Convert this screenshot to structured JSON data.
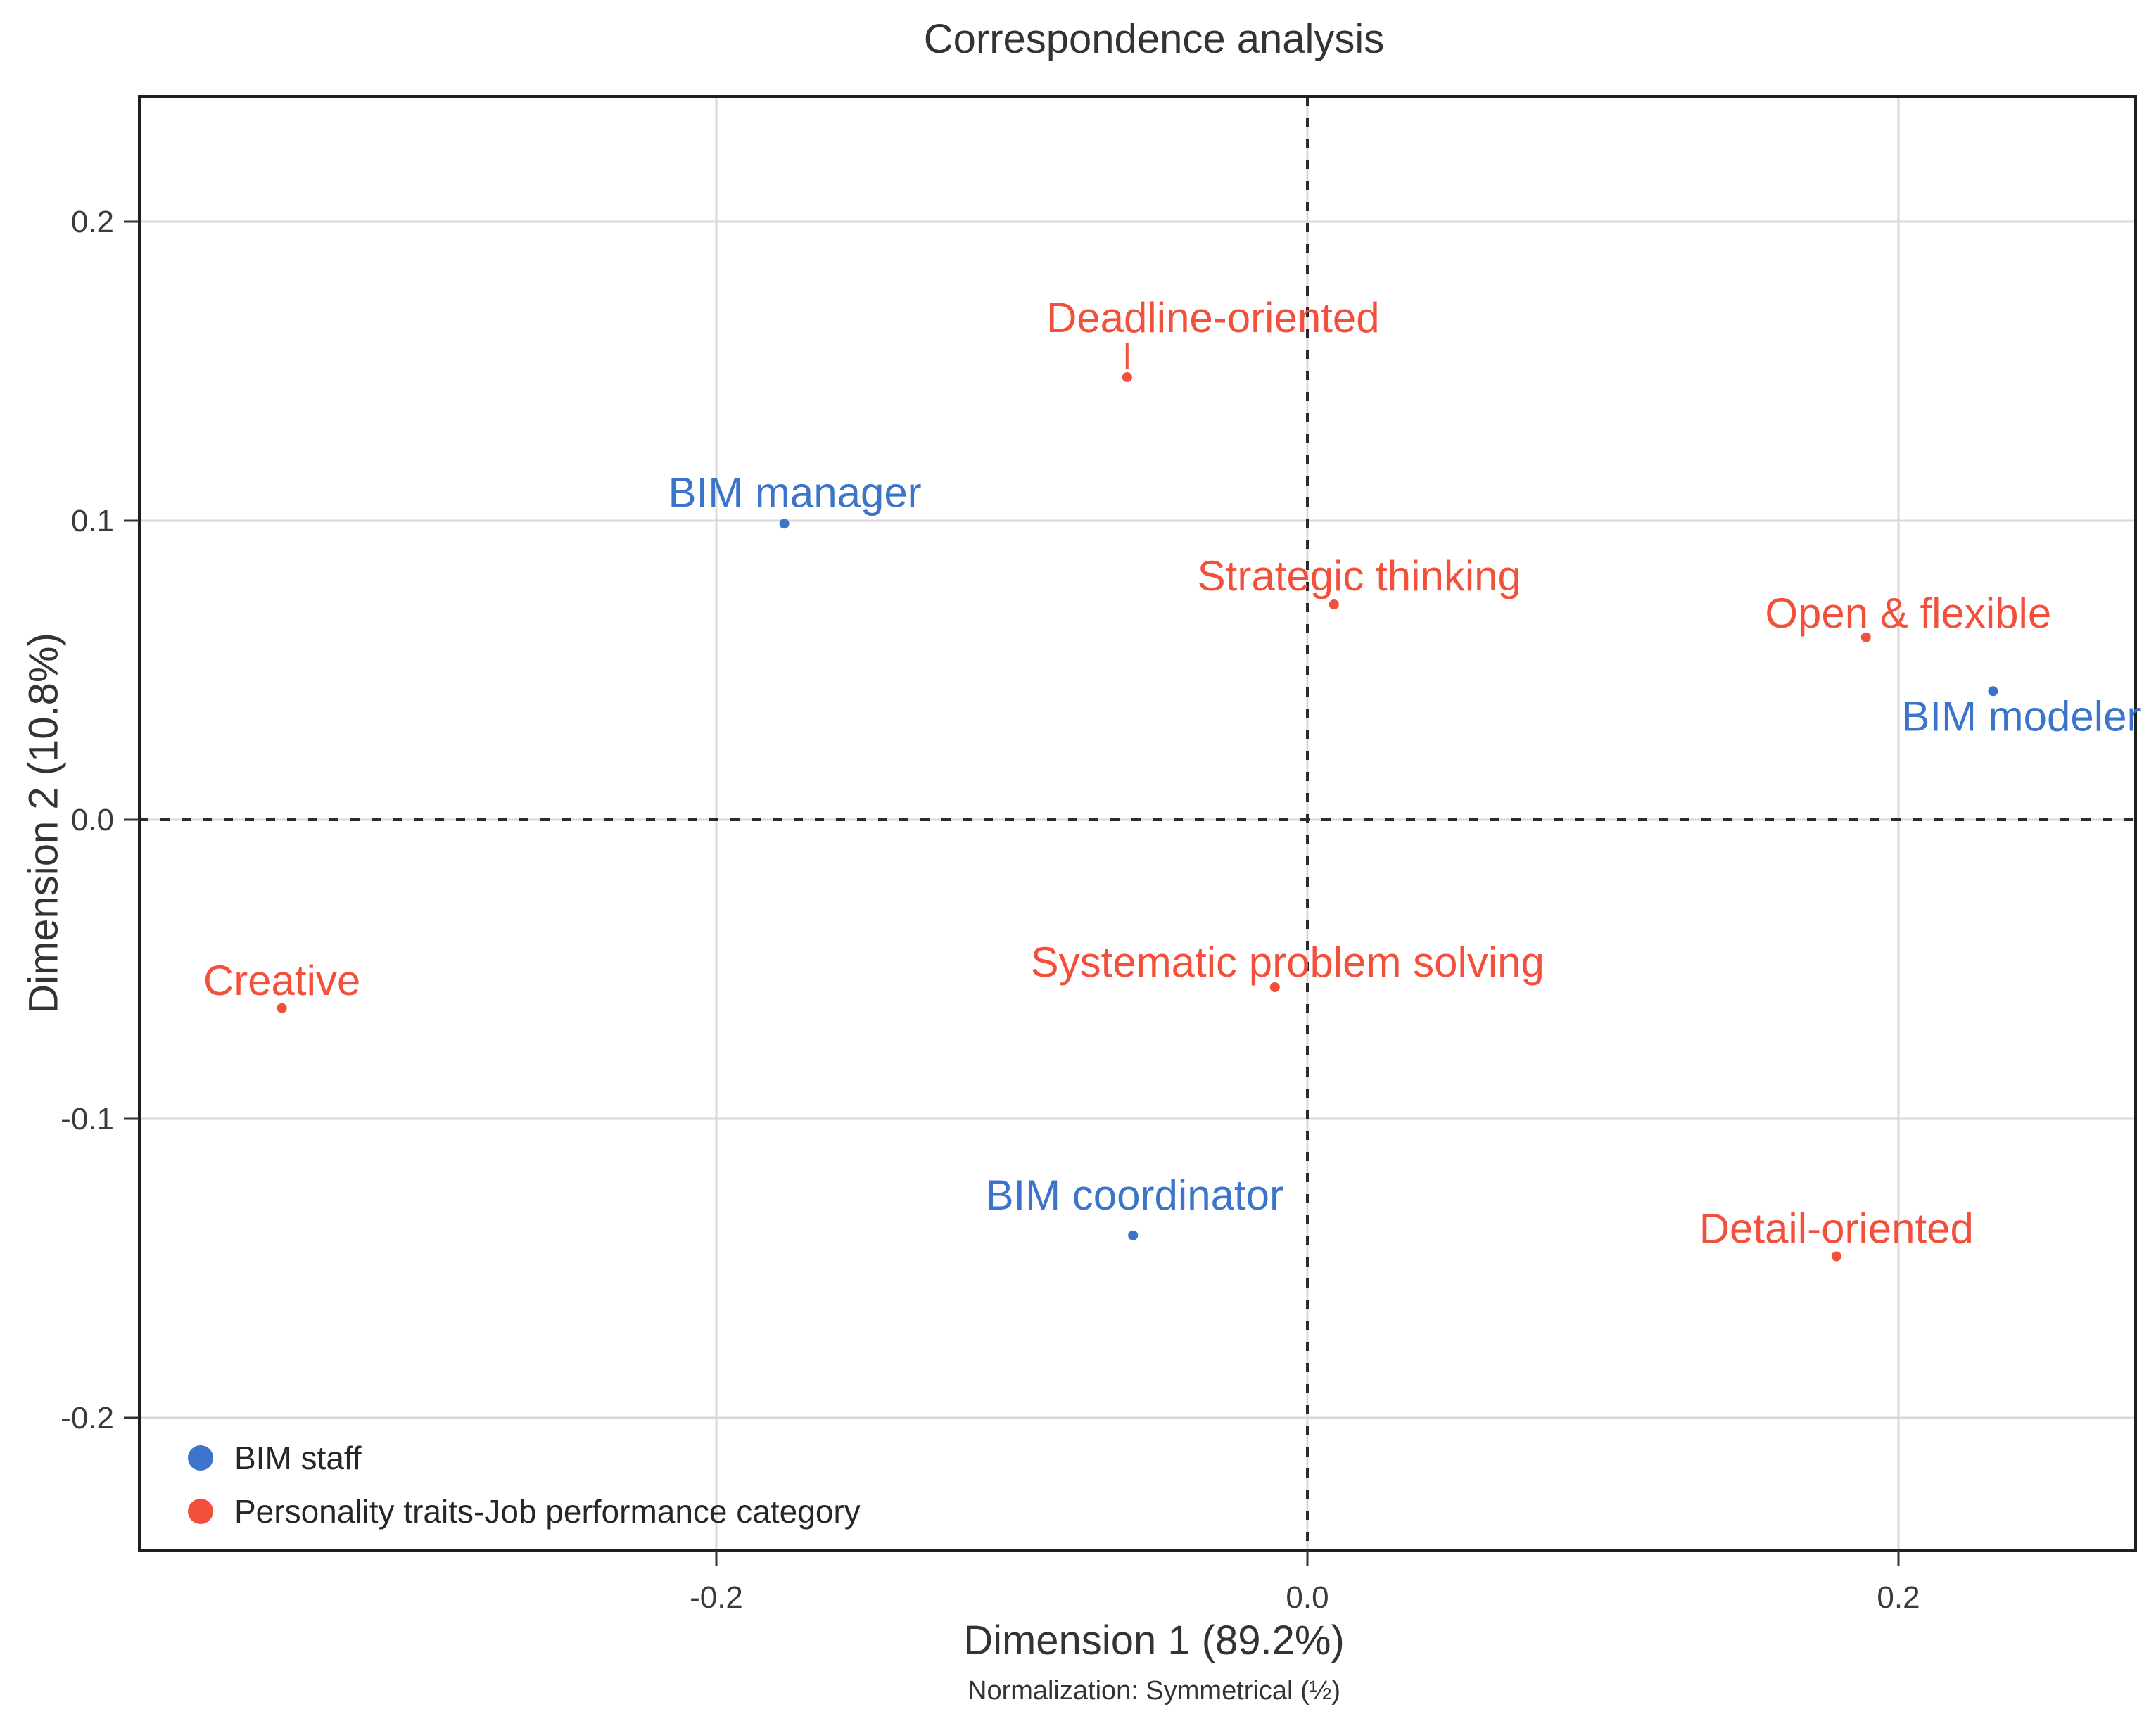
{
  "page": {
    "background": "#ffffff"
  },
  "chart_data": {
    "type": "scatter",
    "title": "Correspondence analysis",
    "xlabel": "Dimension 1 (89.2%)",
    "ylabel": "Dimension 2 (10.8%)",
    "footnote": "Normalization: Symmetrical (½)",
    "xlim": [
      -0.395,
      0.281
    ],
    "ylim": [
      -0.245,
      0.243
    ],
    "x_ticks": [
      -0.2,
      0.0,
      0.2
    ],
    "x_tick_labels": [
      "-0.2",
      "0.0",
      "0.2"
    ],
    "y_ticks": [
      0.2,
      0.1,
      0.0,
      -0.1,
      -0.2
    ],
    "y_tick_labels": [
      "0.2",
      "0.1",
      "0.0",
      "-0.1",
      "-0.2"
    ],
    "grid": true,
    "grid_color": "#d9d9d9",
    "border_color": "#1f1f1f",
    "reference_lines": {
      "x": 0.0,
      "y": 0.0,
      "style": "dashed",
      "color": "#2b2b2b"
    },
    "legend_position": "inside bottom-left",
    "series": [
      {
        "name": "BIM staff",
        "color": "#3b74c8",
        "points": [
          {
            "label": "BIM manager",
            "x": -0.177,
            "y": 0.099,
            "label_dx": 15,
            "label_dy": -45
          },
          {
            "label": "BIM modeler",
            "x": 0.232,
            "y": 0.043,
            "label_dx": 40,
            "label_dy": 35
          },
          {
            "label": "BIM coordinator",
            "x": -0.059,
            "y": -0.139,
            "label_dx": 2,
            "label_dy": -58
          }
        ]
      },
      {
        "name": "Personality traits-Job performance category",
        "color": "#f3503c",
        "points": [
          {
            "label": "Deadline-oriented",
            "x": -0.061,
            "y": 0.148,
            "label_dx": 122,
            "label_dy": -85,
            "leader": true
          },
          {
            "label": "Strategic thinking",
            "x": 0.009,
            "y": 0.072,
            "label_dx": 36,
            "label_dy": -41
          },
          {
            "label": "Open & flexible",
            "x": 0.189,
            "y": 0.061,
            "label_dx": 60,
            "label_dy": -35
          },
          {
            "label": "Creative",
            "x": -0.347,
            "y": -0.063,
            "label_dx": 0,
            "label_dy": -40
          },
          {
            "label": "Systematic problem solving",
            "x": -0.011,
            "y": -0.056,
            "label_dx": 18,
            "label_dy": -36
          },
          {
            "label": "Detail-oriented",
            "x": 0.179,
            "y": -0.146,
            "label_dx": 0,
            "label_dy": -40
          }
        ]
      }
    ]
  }
}
